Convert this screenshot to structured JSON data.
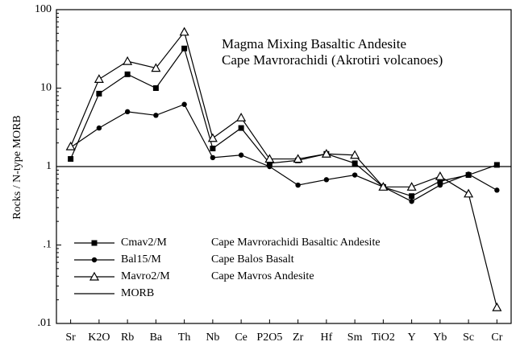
{
  "chart_data": {
    "type": "line",
    "title": [
      "Magma Mixing Basaltic Andesite",
      "Cape Mavrorachidi (Akrotiri volcanoes)"
    ],
    "y_label": "Rocks / N-type MORB",
    "log_y": true,
    "ylim": [
      0.01,
      100
    ],
    "yticks": [
      {
        "value": 0.01,
        "label": ".01"
      },
      {
        "value": 0.1,
        "label": ".1"
      },
      1,
      10,
      100
    ],
    "categories": [
      "Sr",
      "K2O",
      "Rb",
      "Ba",
      "Th",
      "Nb",
      "Ce",
      "P2O5",
      "Zr",
      "Hf",
      "Sm",
      "TiO2",
      "Y",
      "Yb",
      "Sc",
      "Cr"
    ],
    "legend": "lower left",
    "series": [
      {
        "name": "Cmav2/M",
        "description": "Cape Mavrorachidi Basaltic Andesite",
        "color": "#000000",
        "marker": "square",
        "values": [
          1.25,
          8.5,
          15,
          10,
          32,
          1.7,
          3.1,
          1.1,
          1.2,
          1.45,
          1.1,
          0.55,
          0.42,
          0.65,
          0.78,
          1.05
        ]
      },
      {
        "name": "Bal15/M",
        "description": "Cape Balos Basalt",
        "color": "#000000",
        "marker": "circle",
        "values": [
          1.75,
          3.1,
          5,
          4.5,
          6.2,
          1.3,
          1.4,
          1.0,
          0.58,
          0.68,
          0.78,
          0.55,
          0.36,
          0.58,
          0.8,
          0.5
        ]
      },
      {
        "name": "Mavro2/M",
        "description": "Cape Mavros Andesite",
        "color": "#000000",
        "marker": "triangle",
        "values": [
          1.8,
          13,
          22,
          18,
          52,
          2.3,
          4.2,
          1.25,
          1.25,
          1.45,
          1.4,
          0.55,
          0.55,
          0.75,
          0.45,
          0.016
        ]
      },
      {
        "name": "MORB",
        "color": "#000000",
        "values": [
          1,
          1,
          1,
          1,
          1,
          1,
          1,
          1,
          1,
          1,
          1,
          1,
          1,
          1,
          1,
          1
        ]
      }
    ]
  }
}
